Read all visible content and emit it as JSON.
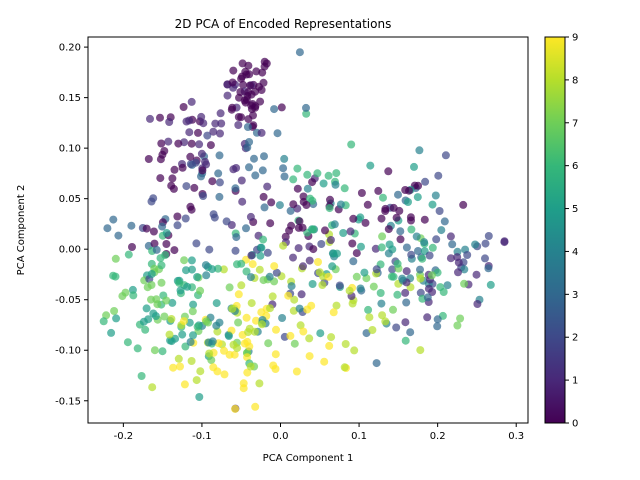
{
  "chart_data": {
    "type": "scatter",
    "title": "2D PCA of Encoded Representations",
    "xlabel": "PCA Component 1",
    "ylabel": "PCA Component 2",
    "xlim": [
      -0.245,
      0.315
    ],
    "ylim": [
      -0.172,
      0.21
    ],
    "x_ticks": [
      "-0.2",
      "-0.1",
      "0.0",
      "0.1",
      "0.2",
      "0.3"
    ],
    "x_tick_values": [
      -0.2,
      -0.1,
      0.0,
      0.1,
      0.2,
      0.3
    ],
    "y_ticks": [
      "-0.15",
      "-0.10",
      "-0.05",
      "0.00",
      "0.05",
      "0.10",
      "0.15",
      "0.20"
    ],
    "y_tick_values": [
      -0.15,
      -0.1,
      -0.05,
      0.0,
      0.05,
      0.1,
      0.15,
      0.2
    ],
    "colormap": "viridis",
    "marker_alpha": 0.7,
    "colorbar": {
      "range": [
        0,
        9
      ],
      "ticks": [
        "0",
        "1",
        "2",
        "3",
        "4",
        "5",
        "6",
        "7",
        "8",
        "9"
      ],
      "tick_values": [
        0,
        1,
        2,
        3,
        4,
        5,
        6,
        7,
        8,
        9
      ],
      "stops": [
        "#440154",
        "#482878",
        "#3e4989",
        "#31688e",
        "#26828e",
        "#1f9e89",
        "#35b779",
        "#6ece58",
        "#b5de2b",
        "#fde725"
      ]
    },
    "clusters": [
      {
        "label": 0,
        "center": [
          -0.04,
          0.155
        ],
        "spread": [
          0.015,
          0.02
        ],
        "count": 45
      },
      {
        "label": 0,
        "center": [
          -0.12,
          0.09
        ],
        "spread": [
          0.025,
          0.03
        ],
        "count": 28
      },
      {
        "label": 0,
        "center": [
          0.02,
          0.035
        ],
        "spread": [
          0.03,
          0.02
        ],
        "count": 22
      },
      {
        "label": 0,
        "center": [
          0.14,
          0.04
        ],
        "spread": [
          0.04,
          0.025
        ],
        "count": 25
      },
      {
        "label": 0,
        "center": [
          -0.16,
          0.005
        ],
        "spread": [
          0.02,
          0.02
        ],
        "count": 10
      },
      {
        "label": 1,
        "center": [
          -0.08,
          0.12
        ],
        "spread": [
          0.04,
          0.03
        ],
        "count": 35
      },
      {
        "label": 1,
        "center": [
          0.02,
          0.01
        ],
        "spread": [
          0.05,
          0.04
        ],
        "count": 20
      },
      {
        "label": 1,
        "center": [
          0.22,
          -0.03
        ],
        "spread": [
          0.04,
          0.03
        ],
        "count": 22
      },
      {
        "label": 2,
        "center": [
          -0.12,
          0.04
        ],
        "spread": [
          0.03,
          0.03
        ],
        "count": 15
      },
      {
        "label": 2,
        "center": [
          0.18,
          0.0
        ],
        "spread": [
          0.05,
          0.04
        ],
        "count": 22
      },
      {
        "label": 2,
        "center": [
          -0.02,
          -0.03
        ],
        "spread": [
          0.04,
          0.03
        ],
        "count": 12
      },
      {
        "label": 3,
        "center": [
          -0.03,
          0.09
        ],
        "spread": [
          0.04,
          0.05
        ],
        "count": 28
      },
      {
        "label": 3,
        "center": [
          -0.17,
          0.02
        ],
        "spread": [
          0.02,
          0.02
        ],
        "count": 8
      },
      {
        "label": 3,
        "center": [
          0.16,
          -0.02
        ],
        "spread": [
          0.05,
          0.04
        ],
        "count": 22
      },
      {
        "label": 4,
        "center": [
          -0.06,
          -0.07
        ],
        "spread": [
          0.04,
          0.03
        ],
        "count": 18
      },
      {
        "label": 4,
        "center": [
          0.08,
          0.02
        ],
        "spread": [
          0.05,
          0.04
        ],
        "count": 22
      },
      {
        "label": 4,
        "center": [
          0.2,
          -0.02
        ],
        "spread": [
          0.04,
          0.03
        ],
        "count": 14
      },
      {
        "label": 5,
        "center": [
          -0.14,
          -0.06
        ],
        "spread": [
          0.04,
          0.03
        ],
        "count": 35
      },
      {
        "label": 5,
        "center": [
          0.1,
          0.01
        ],
        "spread": [
          0.06,
          0.04
        ],
        "count": 28
      },
      {
        "label": 6,
        "center": [
          -0.13,
          -0.05
        ],
        "spread": [
          0.05,
          0.03
        ],
        "count": 35
      },
      {
        "label": 6,
        "center": [
          0.06,
          0.06
        ],
        "spread": [
          0.04,
          0.04
        ],
        "count": 20
      },
      {
        "label": 6,
        "center": [
          0.17,
          -0.04
        ],
        "spread": [
          0.04,
          0.03
        ],
        "count": 18
      },
      {
        "label": 7,
        "center": [
          -0.16,
          -0.045
        ],
        "spread": [
          0.03,
          0.02
        ],
        "count": 20
      },
      {
        "label": 7,
        "center": [
          -0.05,
          -0.06
        ],
        "spread": [
          0.04,
          0.03
        ],
        "count": 22
      },
      {
        "label": 7,
        "center": [
          0.15,
          -0.05
        ],
        "spread": [
          0.04,
          0.03
        ],
        "count": 12
      },
      {
        "label": 8,
        "center": [
          -0.08,
          -0.08
        ],
        "spread": [
          0.04,
          0.03
        ],
        "count": 25
      },
      {
        "label": 8,
        "center": [
          0.03,
          -0.03
        ],
        "spread": [
          0.04,
          0.03
        ],
        "count": 20
      },
      {
        "label": 8,
        "center": [
          0.12,
          -0.07
        ],
        "spread": [
          0.04,
          0.03
        ],
        "count": 14
      },
      {
        "label": 9,
        "center": [
          -0.04,
          -0.09
        ],
        "spread": [
          0.035,
          0.03
        ],
        "count": 30
      },
      {
        "label": 9,
        "center": [
          0.04,
          -0.06
        ],
        "spread": [
          0.04,
          0.03
        ],
        "count": 15
      },
      {
        "label": 9,
        "center": [
          -0.08,
          -0.12
        ],
        "spread": [
          0.03,
          0.015
        ],
        "count": 8
      }
    ],
    "legend": "none",
    "grid": false
  }
}
